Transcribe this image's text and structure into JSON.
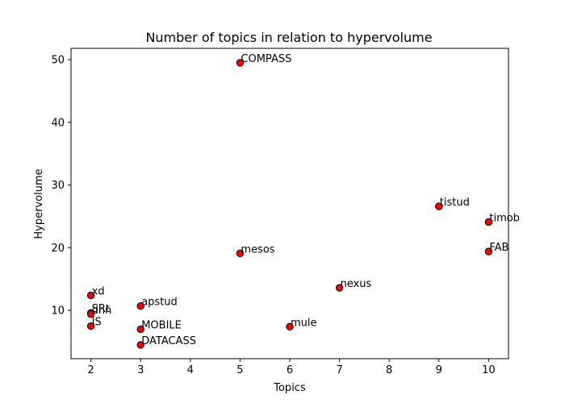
{
  "chart_data": {
    "type": "scatter",
    "title": "Number of topics in relation to hypervolume",
    "xlabel": "Topics",
    "ylabel": "Hypervolume",
    "xlim": [
      1.6,
      10.4
    ],
    "ylim": [
      2.3,
      51.8
    ],
    "xticks": [
      2,
      3,
      4,
      5,
      6,
      7,
      8,
      9,
      10
    ],
    "yticks": [
      10,
      20,
      30,
      40,
      50
    ],
    "grid": false,
    "marker_color": "#ff0000",
    "marker_edge_color": "#000000",
    "points": [
      {
        "label": "COMPASS",
        "x": 5,
        "y": 49.5
      },
      {
        "label": "tistud",
        "x": 9,
        "y": 26.6
      },
      {
        "label": "timob",
        "x": 10,
        "y": 24.1
      },
      {
        "label": "FAB",
        "x": 10,
        "y": 19.4
      },
      {
        "label": "mesos",
        "x": 5,
        "y": 19.1
      },
      {
        "label": "nexus",
        "x": 7,
        "y": 13.6
      },
      {
        "label": "xd",
        "x": 2,
        "y": 12.4
      },
      {
        "label": "apstud",
        "x": 3,
        "y": 10.7
      },
      {
        "label": "SRt",
        "x": 2,
        "y": 9.6
      },
      {
        "label": "dnn",
        "x": 2,
        "y": 9.4
      },
      {
        "label": "IS",
        "x": 2,
        "y": 7.5
      },
      {
        "label": "mule",
        "x": 6,
        "y": 7.4
      },
      {
        "label": "MOBILE",
        "x": 3,
        "y": 7.0
      },
      {
        "label": "DATACASS",
        "x": 3,
        "y": 4.5
      }
    ]
  }
}
